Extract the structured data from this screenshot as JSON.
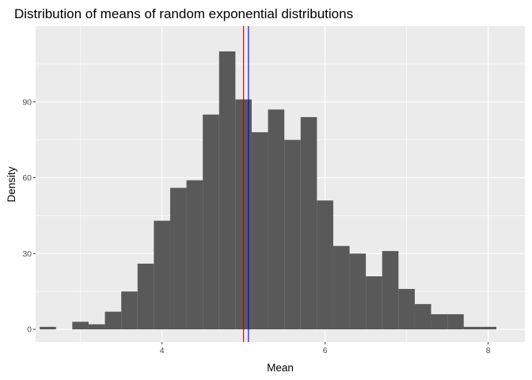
{
  "chart_data": {
    "type": "bar",
    "title": "Distribution of means of random exponential distributions",
    "xlabel": "Mean",
    "ylabel": "Density",
    "xlim": [
      2.45,
      8.45
    ],
    "ylim": [
      -5,
      120
    ],
    "x_ticks": [
      4,
      6,
      8
    ],
    "y_ticks": [
      0,
      30,
      60,
      90
    ],
    "grid": true,
    "bin_width": 0.2,
    "bin_centers": [
      2.6,
      2.8,
      3.0,
      3.2,
      3.4,
      3.6,
      3.8,
      4.0,
      4.2,
      4.4,
      4.6,
      4.8,
      5.0,
      5.2,
      5.4,
      5.6,
      5.8,
      6.0,
      6.2,
      6.4,
      6.6,
      6.8,
      7.0,
      7.2,
      7.4,
      7.6,
      7.8,
      8.0
    ],
    "counts": [
      1,
      0,
      3,
      2,
      7,
      15,
      26,
      43,
      56,
      59,
      85,
      110,
      91,
      78,
      87,
      75,
      84,
      51,
      33,
      30,
      21,
      31,
      16,
      10,
      6,
      6,
      1,
      1
    ],
    "bar_color": "#595959",
    "vlines": [
      {
        "x": 5.0,
        "color": "#c00000"
      },
      {
        "x": 5.06,
        "color": "#0000ff"
      }
    ],
    "panel_background": "#ebebeb",
    "grid_color": "#ffffff"
  }
}
